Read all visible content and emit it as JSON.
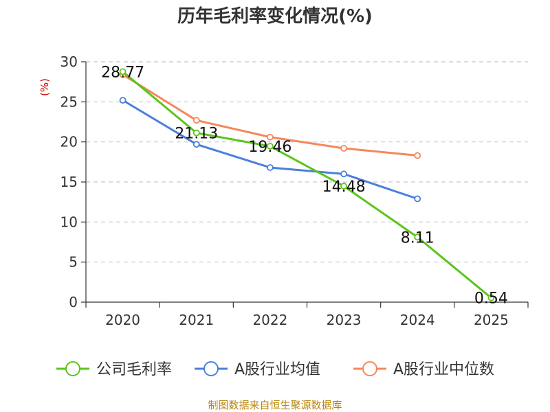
{
  "chart_data": {
    "type": "line",
    "title": "历年毛利率变化情况(%)",
    "ylabel": "(%)",
    "xlabel": "",
    "categories": [
      "2020",
      "2021",
      "2022",
      "2023",
      "2024",
      "2025"
    ],
    "ylim": [
      0,
      30
    ],
    "yticks": [
      0,
      5,
      10,
      15,
      20,
      25,
      30
    ],
    "grid": true,
    "legend_position": "bottom",
    "series": [
      {
        "name": "公司毛利率",
        "color": "#5cc41b",
        "values": [
          28.77,
          21.13,
          19.46,
          14.48,
          8.11,
          0.54
        ],
        "labels": [
          "28.77",
          "21.13",
          "19.46",
          "14.48",
          "8.11",
          "0.54"
        ]
      },
      {
        "name": "A股行业均值",
        "color": "#4a7fdc",
        "values": [
          25.2,
          19.7,
          16.8,
          16.0,
          12.9,
          null
        ]
      },
      {
        "name": "A股行业中位数",
        "color": "#f5875a",
        "values": [
          28.4,
          22.7,
          20.6,
          19.2,
          18.3,
          null
        ]
      }
    ]
  },
  "source_text": "制图数据来自恒生聚源数据库"
}
